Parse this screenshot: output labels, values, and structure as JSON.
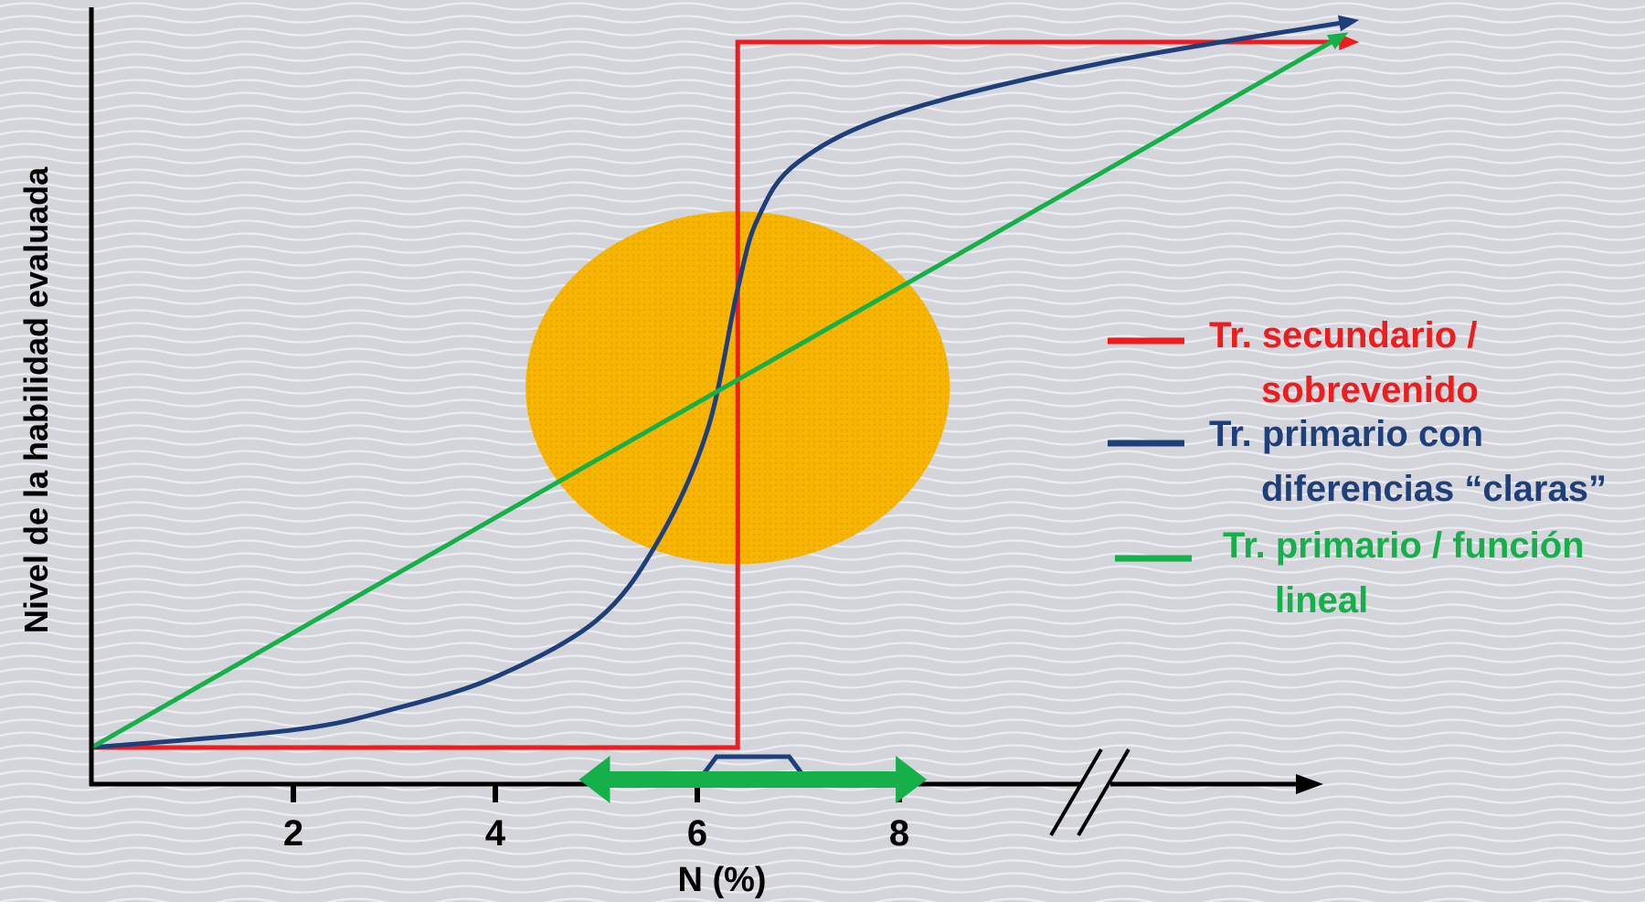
{
  "chart_data": {
    "type": "line",
    "title": "",
    "xlabel": "N (%)",
    "ylabel": "Nivel de la habilidad evaluada",
    "x_ticks": [
      "2",
      "4",
      "6",
      "8"
    ],
    "x_tick_values": [
      2,
      4,
      6,
      8
    ],
    "xlim": [
      0,
      13
    ],
    "ylim": [
      0,
      10
    ],
    "axis_break": "right of 8 on the x axis",
    "grid": false,
    "legend_position": "right",
    "series": [
      {
        "name": "Tr. secundario / sobrevenido",
        "legend_lines": [
          "Tr. secundario /",
          "sobrevenido"
        ],
        "color": "#ee1c1c",
        "shape": "step",
        "points": [
          [
            0,
            0
          ],
          [
            6.4,
            0
          ],
          [
            6.4,
            10
          ],
          [
            12.5,
            10
          ]
        ]
      },
      {
        "name": "Tr. primario con diferencias “claras”",
        "legend_lines": [
          "Tr. primario con",
          "diferencias “claras”"
        ],
        "color": "#1f3f7a",
        "shape": "sigmoid",
        "points": [
          [
            0,
            0
          ],
          [
            2,
            0.25
          ],
          [
            3,
            0.55
          ],
          [
            4,
            1.0
          ],
          [
            5,
            1.8
          ],
          [
            5.6,
            2.9
          ],
          [
            6.1,
            4.5
          ],
          [
            6.4,
            6.5
          ],
          [
            6.6,
            7.5
          ],
          [
            7.0,
            8.3
          ],
          [
            8,
            9.0
          ],
          [
            10,
            9.7
          ],
          [
            12.5,
            10.3
          ]
        ]
      },
      {
        "name": "Tr. primario / función lineal",
        "legend_lines": [
          "Tr. primario / función",
          "lineal"
        ],
        "color": "#16b04a",
        "shape": "linear",
        "points": [
          [
            0,
            0
          ],
          [
            12.4,
            10.1
          ]
        ]
      }
    ],
    "annotations": [
      {
        "kind": "ellipse",
        "color": "#f7b500",
        "center": [
          6.4,
          5.1
        ],
        "radius_x": 2.1,
        "radius_y": 2.5
      },
      {
        "kind": "double-arrow",
        "color": "#16b04a",
        "from": 4.9,
        "to": 8.2
      },
      {
        "kind": "bracket",
        "color": "#1f3f7a",
        "from": 6.1,
        "to": 7.0
      }
    ]
  },
  "colors": {
    "axis": "#000000",
    "background": "#d3d5db",
    "wave": "#ebecf1"
  }
}
